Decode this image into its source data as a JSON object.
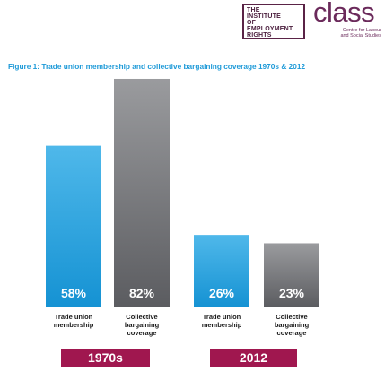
{
  "logos": {
    "ier_lines": [
      "THE",
      "INSTITUTE",
      "OF",
      "EMPLOYMENT",
      "RIGHTS"
    ],
    "class_word": "class",
    "class_sub_lines": [
      "Centre for Labour",
      "and Social Studies"
    ]
  },
  "figure": {
    "title": "Figure 1: Trade union membership and collective bargaining coverage 1970s & 2012"
  },
  "chart_data": {
    "type": "bar",
    "title": "Figure 1: Trade union membership and collective bargaining coverage 1970s & 2012",
    "groups": [
      "1970s",
      "2012"
    ],
    "categories": [
      "Trade union membership",
      "Collective bargaining coverage"
    ],
    "category_label_lines": [
      [
        "Trade union",
        "membership"
      ],
      [
        "Collective",
        "bargaining",
        "coverage"
      ]
    ],
    "series": [
      {
        "group": "1970s",
        "values": [
          58,
          82
        ],
        "labels": [
          "58%",
          "82%"
        ]
      },
      {
        "group": "2012",
        "values": [
          26,
          23
        ],
        "labels": [
          "26%",
          "23%"
        ]
      }
    ],
    "unit": "%",
    "ylim": [
      0,
      100
    ],
    "grid": false,
    "colors": {
      "membership": "#1e9ad8",
      "coverage": "#6d6e71",
      "group_band": "#a0174f",
      "title": "#1e9ad8"
    }
  }
}
